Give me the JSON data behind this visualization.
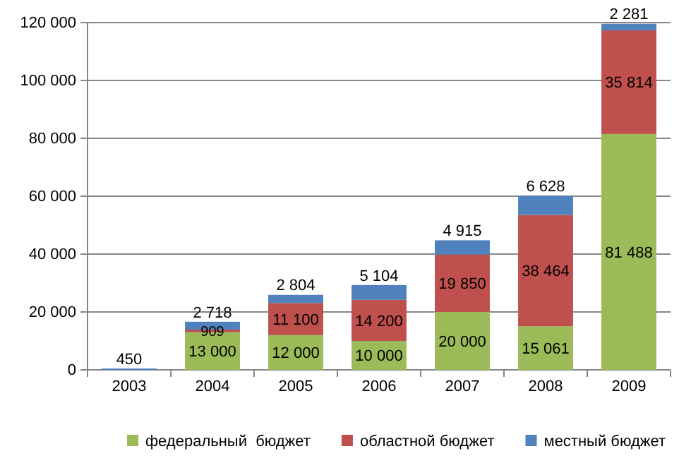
{
  "chart_data": {
    "type": "bar",
    "stacked": true,
    "categories": [
      "2003",
      "2004",
      "2005",
      "2006",
      "2007",
      "2008",
      "2009"
    ],
    "series": [
      {
        "name": "федеральный  бюджет",
        "color": "#9bbb59",
        "values": [
          null,
          13000,
          12000,
          10000,
          20000,
          15061,
          81488
        ],
        "value_labels": [
          null,
          "13 000",
          "12 000",
          "10 000",
          "20 000",
          "15 061",
          "81 488"
        ]
      },
      {
        "name": "областной бюджет",
        "color": "#c0504d",
        "values": [
          null,
          909,
          11100,
          14200,
          19850,
          38464,
          35814
        ],
        "value_labels": [
          null,
          "909",
          "11 100",
          "14 200",
          "19 850",
          "38 464",
          "35 814"
        ]
      },
      {
        "name": "местный бюджет",
        "color": "#4f81bd",
        "values": [
          450,
          2718,
          2804,
          5104,
          4915,
          6628,
          2281
        ],
        "value_labels": [
          "450",
          "2 718",
          "2 804",
          "5 104",
          "4 915",
          "6 628",
          "2 281"
        ]
      }
    ],
    "ylim": [
      0,
      120000
    ],
    "yticks": [
      0,
      {
        "value": 20000,
        "label": "20 000"
      },
      {
        "value": 40000,
        "label": "40 000"
      },
      {
        "value": 60000,
        "label": "60 000"
      },
      {
        "value": 80000,
        "label": "80 000"
      },
      {
        "value": 100000,
        "label": "100 000"
      },
      {
        "value": 120000,
        "label": "120 000"
      }
    ],
    "grid": "y",
    "legend": "bottom"
  }
}
